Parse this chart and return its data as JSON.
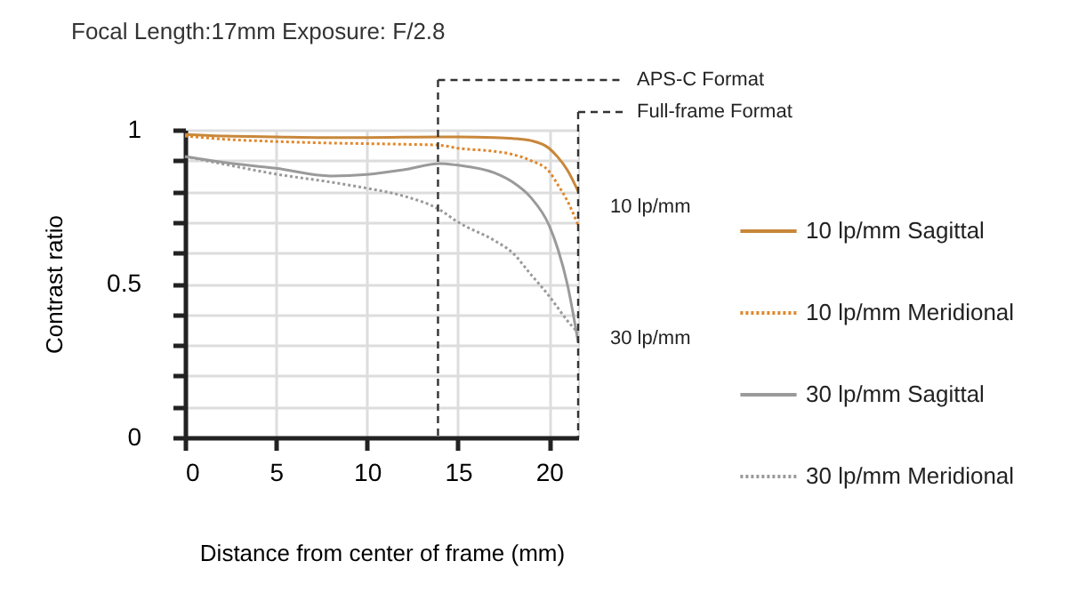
{
  "chart_data": {
    "type": "line",
    "title": "Focal Length:17mm    Exposure: F/2.8",
    "xlabel": "Distance from center of frame (mm)",
    "ylabel": "Contrast ratio",
    "xlim": [
      0,
      21.6
    ],
    "xticks": [
      0,
      5,
      10,
      15,
      20
    ],
    "ylim": [
      0,
      1
    ],
    "yticks": [
      0,
      {
        "value": 0.1,
        "label": null
      },
      {
        "value": 0.2,
        "label": null
      },
      {
        "value": 0.3,
        "label": null
      },
      {
        "value": 0.4,
        "label": null
      },
      0.5,
      {
        "value": 0.6,
        "label": null
      },
      {
        "value": 0.7,
        "label": null
      },
      {
        "value": 0.8,
        "label": null
      },
      {
        "value": 0.9,
        "label": null
      },
      1
    ],
    "grid": true,
    "legend": "right",
    "x": [
      0,
      2,
      5,
      8,
      10,
      12,
      14,
      15,
      17,
      18,
      19,
      20,
      20.5,
      21,
      21.6
    ],
    "series": [
      {
        "name": "10 lp/mm Sagittal",
        "color": "#c8873a",
        "line_style": "solid",
        "values": [
          0.985,
          0.98,
          0.977,
          0.975,
          0.975,
          0.976,
          0.977,
          0.977,
          0.975,
          0.972,
          0.965,
          0.94,
          0.91,
          0.87,
          0.8
        ]
      },
      {
        "name": "10 lp/mm Meridional",
        "color": "#e0872a",
        "line_style": "dotted",
        "values": [
          0.98,
          0.97,
          0.962,
          0.957,
          0.955,
          0.953,
          0.95,
          0.94,
          0.93,
          0.92,
          0.9,
          0.865,
          0.82,
          0.77,
          0.69
        ]
      },
      {
        "name": "30 lp/mm Sagittal",
        "color": "#9a9a9a",
        "line_style": "solid",
        "values": [
          0.913,
          0.895,
          0.875,
          0.85,
          0.855,
          0.87,
          0.89,
          0.885,
          0.86,
          0.83,
          0.78,
          0.69,
          0.61,
          0.5,
          0.31
        ]
      },
      {
        "name": "30 lp/mm Meridional",
        "color": "#9a9a9a",
        "line_style": "dotted",
        "values": [
          0.913,
          0.89,
          0.856,
          0.83,
          0.81,
          0.785,
          0.74,
          0.7,
          0.64,
          0.6,
          0.53,
          0.46,
          0.42,
          0.38,
          0.34
        ]
      }
    ],
    "ref_lines": [
      {
        "axis": "x",
        "value": 13.9,
        "label": "APS-C Format",
        "line_style": "dashed",
        "color": "#333333"
      },
      {
        "axis": "x",
        "value": 21.6,
        "label": "Full-frame Format",
        "line_style": "dashed",
        "color": "#333333"
      }
    ],
    "annotations": [
      {
        "text": "10 lp/mm",
        "x": 21.6,
        "y": 0.75
      },
      {
        "text": "30 lp/mm",
        "x": 21.6,
        "y": 0.32
      }
    ]
  }
}
